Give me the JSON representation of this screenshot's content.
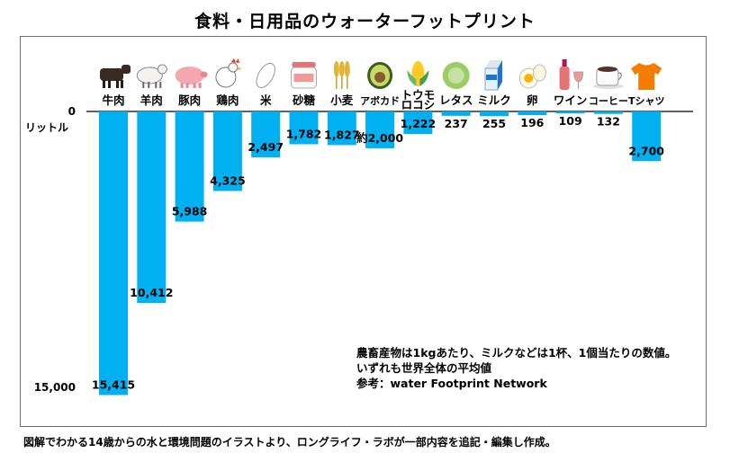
{
  "title": "食料・日用品のウォーターフットプリント",
  "footer": "図解でわかる14歳からの水と環境問題のイラストより、ロングライフ・ラボが一部内容を追記・編集し作成。",
  "notes": [
    "農畜産物は1kgあたり、ミルクなどは1杯、1個当たりの数値。",
    "いずれも世界全体の平均値",
    "参考：water Footprint Network"
  ],
  "colors": {
    "bar": "#00b0f0",
    "axis": "#000000"
  },
  "chart_data": {
    "type": "bar",
    "orientation": "downward",
    "ylabel": "リットル",
    "ylim": [
      0,
      16000
    ],
    "ytick_labels": [
      "0",
      "15,000"
    ],
    "ytick_values": [
      0,
      15000
    ],
    "categories": [
      "牛肉",
      "羊肉",
      "豚肉",
      "鶏肉",
      "米",
      "砂糖",
      "小麦",
      "アボカド",
      "トウモロコシ",
      "レタス",
      "ミルク",
      "卵",
      "ワイン",
      "コーヒー",
      "Tシャツ"
    ],
    "values": [
      15415,
      10412,
      5988,
      4325,
      2497,
      1782,
      1827,
      2000,
      1222,
      237,
      255,
      196,
      109,
      132,
      2700
    ],
    "value_labels": [
      "15,415",
      "10,412",
      "5,988",
      "4,325",
      "2,497",
      "1,782",
      "1,827",
      "約2,000",
      "1,222",
      "237",
      "255",
      "196",
      "109",
      "132",
      "2,700"
    ],
    "icons": [
      "cow-icon",
      "sheep-icon",
      "pig-icon",
      "chicken-icon",
      "rice-icon",
      "sugar-jar-icon",
      "wheat-icon",
      "avocado-icon",
      "corn-icon",
      "lettuce-icon",
      "milk-carton-icon",
      "egg-icon",
      "wine-icon",
      "coffee-cup-icon",
      "tshirt-icon"
    ]
  }
}
